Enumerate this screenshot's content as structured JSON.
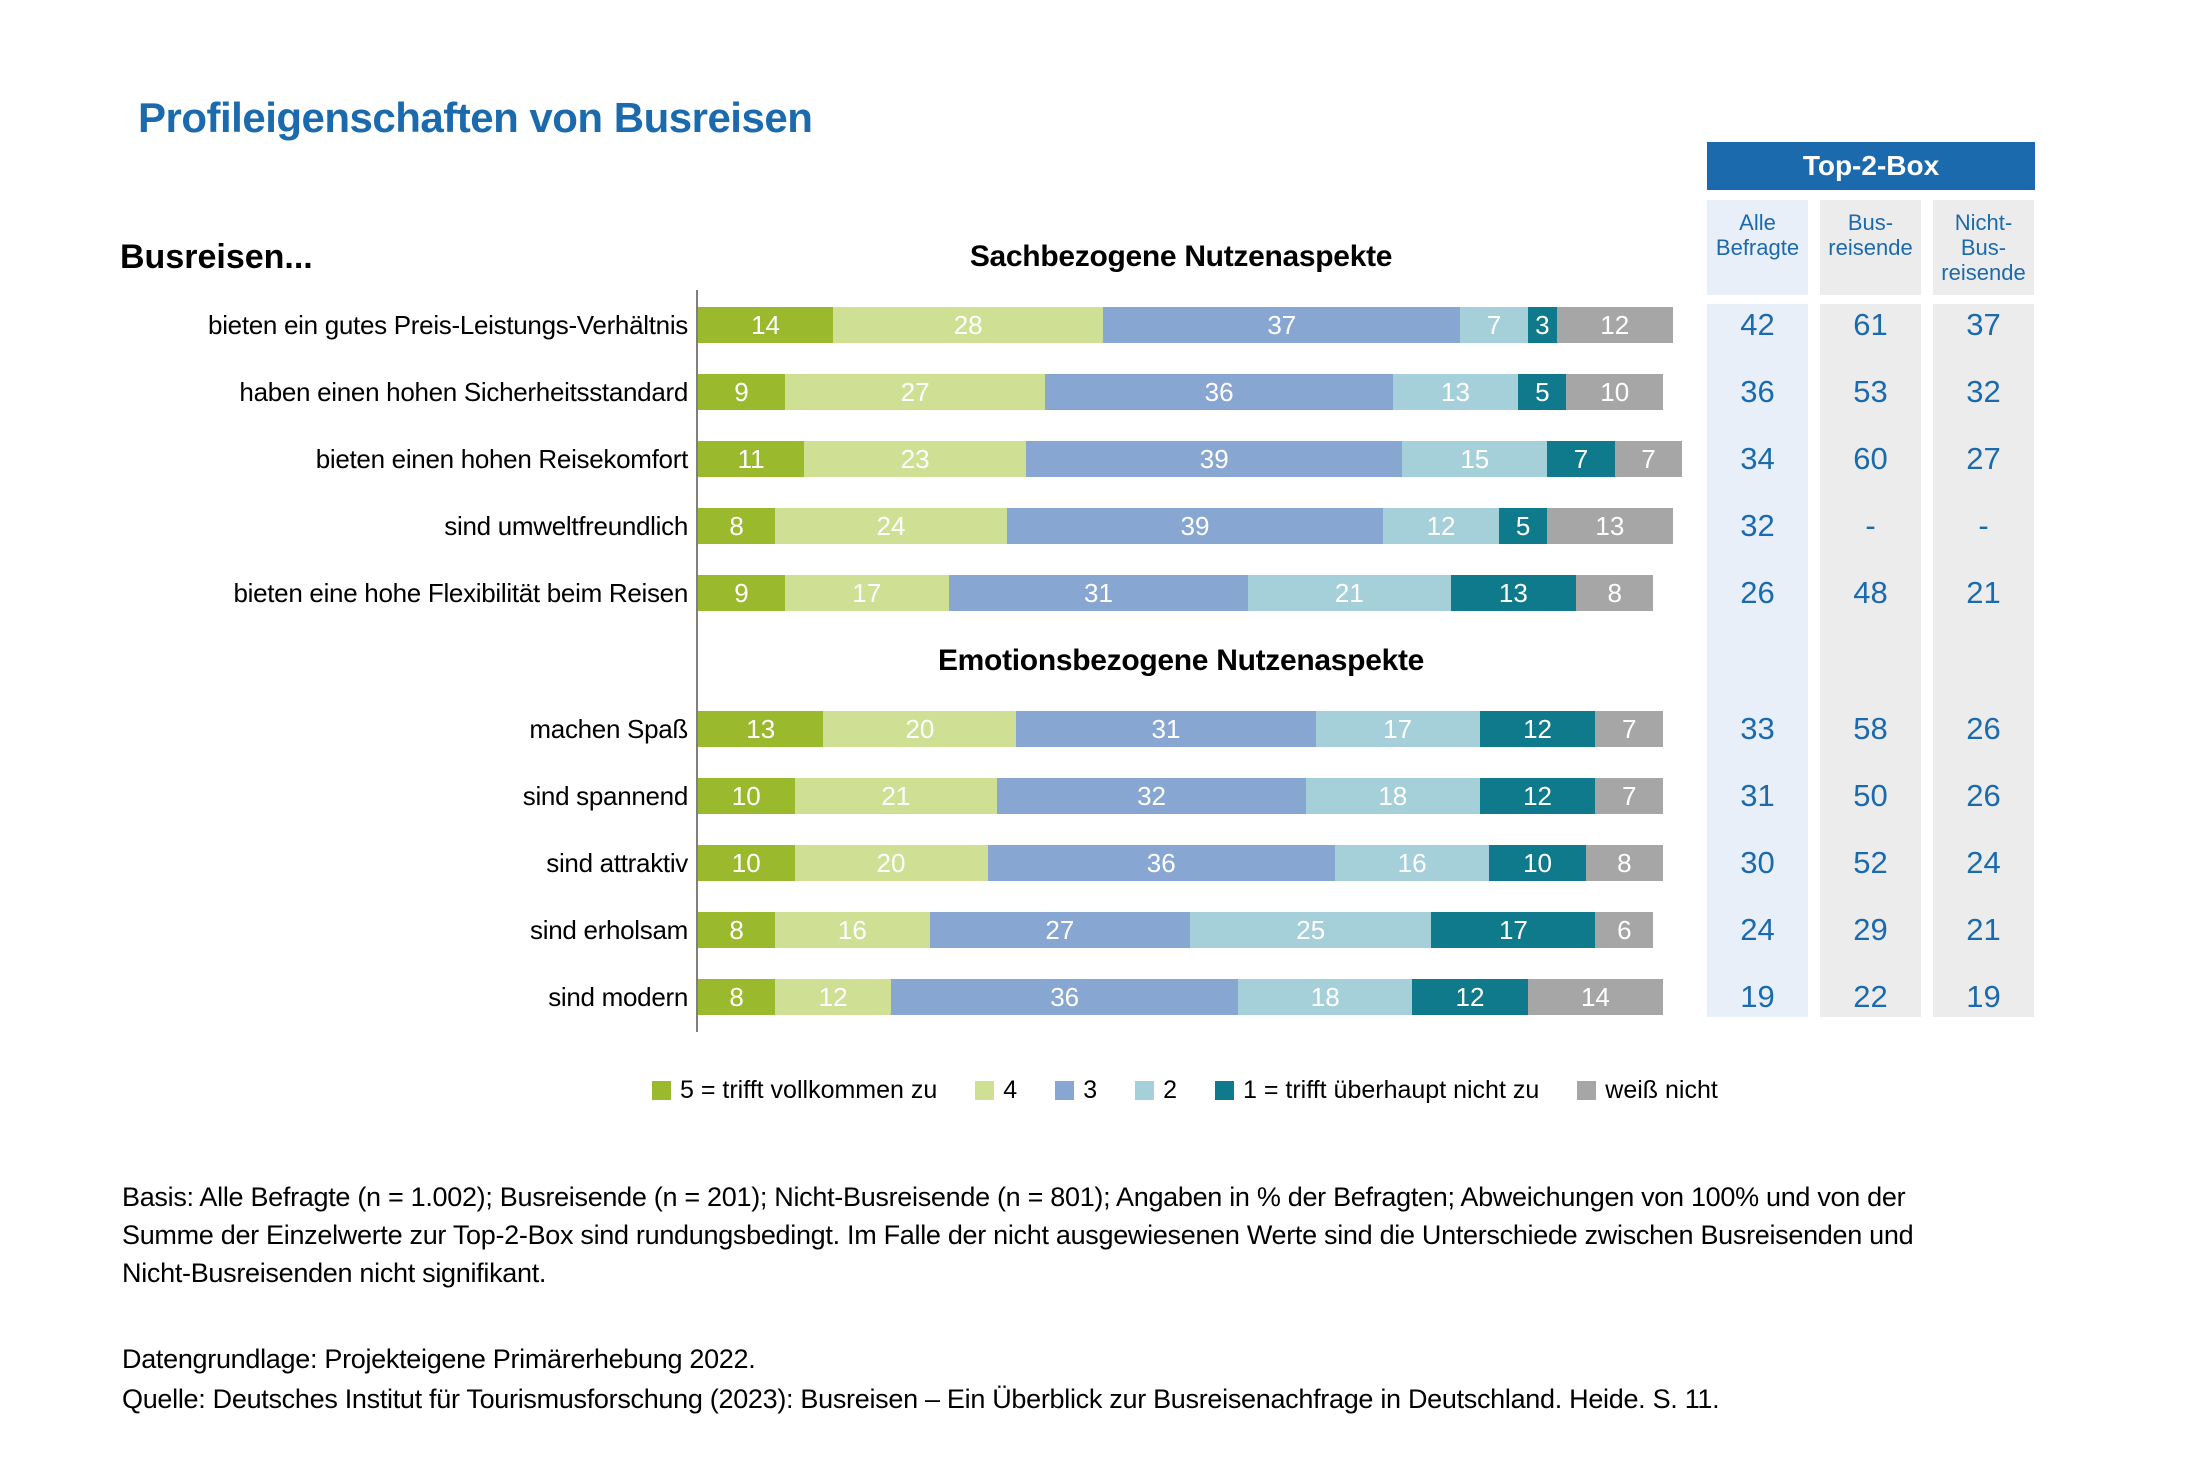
{
  "page": {
    "title": "Profileigenschaften von Busreisen",
    "rows_intro": "Busreisen..."
  },
  "top2box": {
    "header": "Top-2-Box",
    "columns": [
      "Alle\nBefragte",
      "Bus-\nreisende",
      "Nicht-\nBus-\nreisende"
    ]
  },
  "colors": {
    "accent_blue": "#1b6aad",
    "col_alle_bg": "#e9eff8",
    "col_gray_bg": "#ececec",
    "axis_gray": "#7f7f7f"
  },
  "chart_data": {
    "type": "bar",
    "stacked": true,
    "orientation": "horizontal",
    "unit": "% der Befragten",
    "xlim": [
      0,
      100
    ],
    "legend_position": "bottom",
    "series_labels": [
      "5 = trifft vollkommen zu",
      "4",
      "3",
      "2",
      "1 = trifft überhaupt nicht zu",
      "weiß nicht"
    ],
    "series_colors": [
      "#9bb92d",
      "#cfdf94",
      "#88a6d2",
      "#a5cfd9",
      "#0e7a8c",
      "#a6a6a6"
    ],
    "top2box_columns": [
      "Alle Befragte",
      "Bus-reisende",
      "Nicht-Bus-reisende"
    ],
    "sections": [
      {
        "title": "Sachbezogene Nutzenaspekte",
        "rows": [
          {
            "label": "bieten ein gutes Preis-Leistungs-Verhältnis",
            "values": [
              14,
              28,
              37,
              7,
              3,
              12
            ],
            "top2box": [
              "42",
              "61",
              "37"
            ]
          },
          {
            "label": "haben einen hohen Sicherheitsstandard",
            "values": [
              9,
              27,
              36,
              13,
              5,
              10
            ],
            "top2box": [
              "36",
              "53",
              "32"
            ]
          },
          {
            "label": "bieten einen hohen Reisekomfort",
            "values": [
              11,
              23,
              39,
              15,
              7,
              7
            ],
            "top2box": [
              "34",
              "60",
              "27"
            ]
          },
          {
            "label": "sind umweltfreundlich",
            "values": [
              8,
              24,
              39,
              12,
              5,
              13
            ],
            "top2box": [
              "32",
              "-",
              "-"
            ]
          },
          {
            "label": "bieten eine hohe Flexibilität beim Reisen",
            "values": [
              9,
              17,
              31,
              21,
              13,
              8
            ],
            "top2box": [
              "26",
              "48",
              "21"
            ]
          }
        ]
      },
      {
        "title": "Emotionsbezogene Nutzenaspekte",
        "rows": [
          {
            "label": "machen Spaß",
            "values": [
              13,
              20,
              31,
              17,
              12,
              7
            ],
            "top2box": [
              "33",
              "58",
              "26"
            ]
          },
          {
            "label": "sind spannend",
            "values": [
              10,
              21,
              32,
              18,
              12,
              7
            ],
            "top2box": [
              "31",
              "50",
              "26"
            ]
          },
          {
            "label": "sind attraktiv",
            "values": [
              10,
              20,
              36,
              16,
              10,
              8
            ],
            "top2box": [
              "30",
              "52",
              "24"
            ]
          },
          {
            "label": "sind erholsam",
            "values": [
              8,
              16,
              27,
              25,
              17,
              6
            ],
            "top2box": [
              "24",
              "29",
              "21"
            ]
          },
          {
            "label": "sind modern",
            "values": [
              8,
              12,
              36,
              18,
              12,
              14
            ],
            "top2box": [
              "19",
              "22",
              "19"
            ]
          }
        ]
      }
    ]
  },
  "footnotes": {
    "basis": "Basis: Alle Befragte (n = 1.002); Busreisende (n = 201); Nicht-Busreisende (n = 801); Angaben in % der Befragten; Abweichungen von 100% und von der Summe der Einzelwerte zur Top-2-Box sind rundungsbedingt. Im Falle der nicht ausgewiesenen Werte sind die Unterschiede zwischen Busreisenden und Nicht-Busreisenden nicht signifikant.",
    "datengrundlage": "Datengrundlage: Projekteigene Primärerhebung 2022.",
    "quelle": "Quelle: Deutsches Institut für Tourismusforschung (2023): Busreisen – Ein Überblick zur Busreisenachfrage in Deutschland. Heide. S. 11."
  }
}
